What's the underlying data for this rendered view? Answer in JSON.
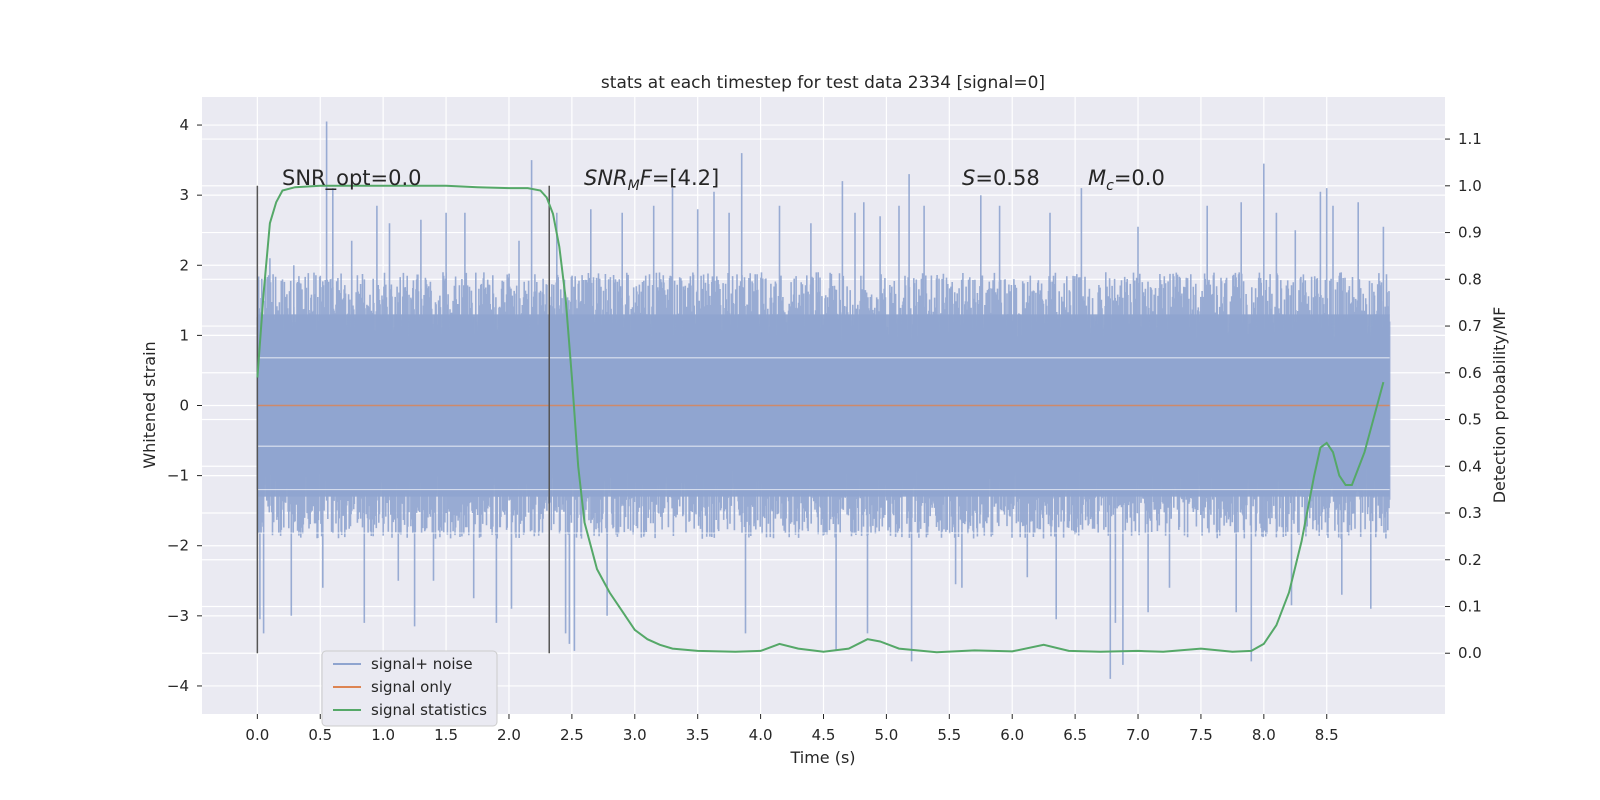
{
  "chart_data": {
    "type": "line",
    "title": "stats at each timestep for test data 2334 [signal=0]",
    "xlabel": "Time (s)",
    "ylabel": "Whitened strain",
    "y2label": "Detection probability/MF",
    "xlim": [
      -0.44,
      9.44
    ],
    "ylim": [
      -4.4,
      4.4
    ],
    "y2lim": [
      -0.13,
      1.19
    ],
    "x_ticks": [
      "0.0",
      "0.5",
      "1.0",
      "1.5",
      "2.0",
      "2.5",
      "3.0",
      "3.5",
      "4.0",
      "4.5",
      "5.0",
      "5.5",
      "6.0",
      "6.5",
      "7.0",
      "7.5",
      "8.0",
      "8.5"
    ],
    "y_ticks": [
      "4",
      "3",
      "2",
      "1",
      "0",
      "−1",
      "−2",
      "−3",
      "−4"
    ],
    "y2_ticks": [
      "1.1",
      "1.0",
      "0.9",
      "0.8",
      "0.7",
      "0.6",
      "0.5",
      "0.4",
      "0.3",
      "0.2",
      "0.1",
      "0.0"
    ],
    "grid": true,
    "legend_position": "lower-left",
    "annotations": {
      "snr_opt": "SNR_opt=0.0",
      "snr_mf_prefix": "SNR",
      "snr_mf_sub": "M",
      "snr_mf_suffix": "F=[4.2]",
      "s_var": "S",
      "s_value": "=0.58",
      "mc_var": "M",
      "mc_sub": "c",
      "mc_value": "=0.0"
    },
    "vertical_markers": [
      0.0,
      2.32
    ],
    "series": [
      {
        "name": "signal+ noise",
        "color": "#8fa4cf",
        "x_range": [
          0.0,
          9.0
        ],
        "typical_range": [
          -1.9,
          1.9
        ],
        "spikes": [
          [
            0.02,
            -3.05
          ],
          [
            0.05,
            -3.25
          ],
          [
            0.1,
            2.1
          ],
          [
            0.27,
            -3.0
          ],
          [
            0.29,
            2.0
          ],
          [
            0.52,
            -2.6
          ],
          [
            0.55,
            4.05
          ],
          [
            0.6,
            3.1
          ],
          [
            0.75,
            2.35
          ],
          [
            0.85,
            -3.1
          ],
          [
            0.95,
            2.85
          ],
          [
            1.05,
            2.6
          ],
          [
            1.12,
            -2.5
          ],
          [
            1.25,
            -3.15
          ],
          [
            1.3,
            2.65
          ],
          [
            1.4,
            -2.5
          ],
          [
            1.5,
            2.75
          ],
          [
            1.65,
            2.75
          ],
          [
            1.72,
            -2.75
          ],
          [
            1.9,
            -3.1
          ],
          [
            2.02,
            -2.9
          ],
          [
            2.08,
            2.35
          ],
          [
            2.18,
            3.5
          ],
          [
            2.38,
            2.75
          ],
          [
            2.45,
            -3.25
          ],
          [
            2.48,
            -3.4
          ],
          [
            2.52,
            -3.5
          ],
          [
            2.65,
            2.8
          ],
          [
            2.78,
            -3.0
          ],
          [
            2.9,
            2.75
          ],
          [
            3.15,
            2.85
          ],
          [
            3.3,
            3.1
          ],
          [
            3.5,
            2.8
          ],
          [
            3.63,
            3.05
          ],
          [
            3.75,
            2.75
          ],
          [
            3.85,
            3.6
          ],
          [
            3.88,
            -3.25
          ],
          [
            4.15,
            2.85
          ],
          [
            4.4,
            2.6
          ],
          [
            4.6,
            -3.5
          ],
          [
            4.65,
            3.2
          ],
          [
            4.75,
            2.75
          ],
          [
            4.82,
            2.9
          ],
          [
            4.85,
            -3.25
          ],
          [
            4.95,
            2.7
          ],
          [
            5.1,
            2.85
          ],
          [
            5.18,
            3.3
          ],
          [
            5.2,
            -3.65
          ],
          [
            5.3,
            2.85
          ],
          [
            5.55,
            -2.55
          ],
          [
            5.6,
            -2.6
          ],
          [
            5.75,
            3.0
          ],
          [
            5.9,
            2.85
          ],
          [
            6.12,
            -2.45
          ],
          [
            6.3,
            2.75
          ],
          [
            6.35,
            -3.05
          ],
          [
            6.55,
            3.1
          ],
          [
            6.78,
            -3.9
          ],
          [
            6.82,
            -3.1
          ],
          [
            6.88,
            -3.7
          ],
          [
            7.0,
            2.55
          ],
          [
            7.08,
            -2.95
          ],
          [
            7.25,
            -2.6
          ],
          [
            7.55,
            2.85
          ],
          [
            7.78,
            -2.95
          ],
          [
            7.82,
            2.9
          ],
          [
            7.9,
            -3.65
          ],
          [
            8.0,
            3.45
          ],
          [
            8.1,
            2.75
          ],
          [
            8.22,
            -2.85
          ],
          [
            8.25,
            2.5
          ],
          [
            8.45,
            3.05
          ],
          [
            8.5,
            3.1
          ],
          [
            8.55,
            2.85
          ],
          [
            8.62,
            -2.7
          ],
          [
            8.75,
            2.9
          ],
          [
            8.85,
            -2.9
          ],
          [
            8.95,
            2.55
          ]
        ]
      },
      {
        "name": "signal only",
        "color": "#dd8452",
        "x": [
          0.0,
          9.0
        ],
        "y": [
          0.0,
          0.0
        ]
      },
      {
        "name": "signal statistics",
        "color": "#55a868",
        "axis": "right",
        "x": [
          0.0,
          0.05,
          0.1,
          0.15,
          0.2,
          0.3,
          0.5,
          1.0,
          1.5,
          1.75,
          2.0,
          2.15,
          2.25,
          2.3,
          2.35,
          2.4,
          2.45,
          2.5,
          2.55,
          2.6,
          2.7,
          2.8,
          2.9,
          3.0,
          3.1,
          3.2,
          3.3,
          3.5,
          3.8,
          4.0,
          4.15,
          4.3,
          4.5,
          4.7,
          4.85,
          4.95,
          5.1,
          5.4,
          5.7,
          6.0,
          6.25,
          6.45,
          6.7,
          7.0,
          7.2,
          7.5,
          7.75,
          7.9,
          8.0,
          8.1,
          8.2,
          8.3,
          8.4,
          8.45,
          8.5,
          8.55,
          8.6,
          8.65,
          8.7,
          8.8,
          8.9,
          8.95
        ],
        "y": [
          0.59,
          0.77,
          0.92,
          0.965,
          0.99,
          0.997,
          1.0,
          1.0,
          1.0,
          0.997,
          0.995,
          0.995,
          0.99,
          0.975,
          0.94,
          0.87,
          0.76,
          0.59,
          0.4,
          0.28,
          0.18,
          0.13,
          0.09,
          0.05,
          0.03,
          0.018,
          0.01,
          0.005,
          0.003,
          0.005,
          0.02,
          0.01,
          0.003,
          0.01,
          0.03,
          0.025,
          0.01,
          0.002,
          0.006,
          0.004,
          0.018,
          0.005,
          0.003,
          0.005,
          0.003,
          0.01,
          0.003,
          0.005,
          0.02,
          0.06,
          0.13,
          0.24,
          0.38,
          0.44,
          0.45,
          0.43,
          0.38,
          0.36,
          0.36,
          0.43,
          0.53,
          0.58
        ]
      }
    ]
  }
}
